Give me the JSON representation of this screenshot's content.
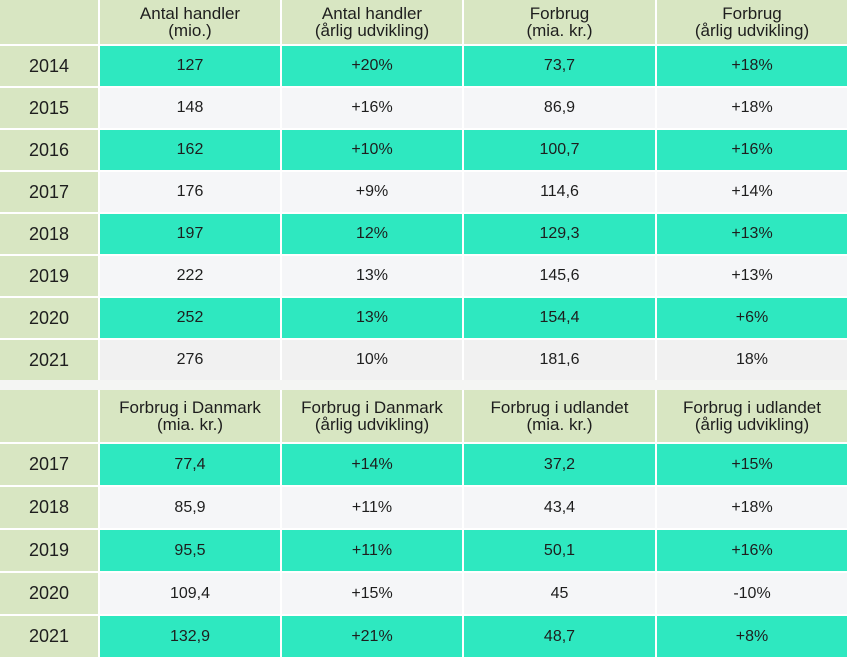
{
  "table1": {
    "headers": [
      [
        "",
        ""
      ],
      [
        "Antal handler",
        "(mio.)"
      ],
      [
        "Antal handler",
        "(årlig udvikling)"
      ],
      [
        "Forbrug",
        "(mia. kr.)"
      ],
      [
        "Forbrug",
        "(årlig udvikling)"
      ]
    ],
    "rows": [
      [
        "2014",
        "127",
        "+20%",
        "73,7",
        "+18%"
      ],
      [
        "2015",
        "148",
        "+16%",
        "86,9",
        "+18%"
      ],
      [
        "2016",
        "162",
        "+10%",
        "100,7",
        "+16%"
      ],
      [
        "2017",
        "176",
        "+9%",
        "114,6",
        "+14%"
      ],
      [
        "2018",
        "197",
        "12%",
        "129,3",
        "+13%"
      ],
      [
        "2019",
        "222",
        "13%",
        "145,6",
        "+13%"
      ],
      [
        "2020",
        "252",
        "13%",
        "154,4",
        "+6%"
      ],
      [
        "2021",
        "276",
        "10%",
        "181,6",
        "18%"
      ]
    ]
  },
  "table2": {
    "headers": [
      [
        "",
        ""
      ],
      [
        "Forbrug i Danmark",
        "(mia. kr.)"
      ],
      [
        "Forbrug i Danmark",
        "(årlig udvikling)"
      ],
      [
        "Forbrug i udlandet",
        "(mia. kr.)"
      ],
      [
        "Forbrug  i udlandet",
        "(årlig udvikling)"
      ]
    ],
    "rows": [
      [
        "2017",
        "77,4",
        "+14%",
        "37,2",
        "+15%"
      ],
      [
        "2018",
        "85,9",
        "+11%",
        "43,4",
        "+18%"
      ],
      [
        "2019",
        "95,5",
        "+11%",
        "50,1",
        "+16%"
      ],
      [
        "2020",
        "109,4",
        "+15%",
        "45",
        "-10%"
      ],
      [
        "2021",
        "132,9",
        "+21%",
        "48,7",
        "+8%"
      ]
    ]
  },
  "colors": {
    "header_bg": "#d8e6c2",
    "highlight": "#2ee8c0",
    "plain": "#f5f6f8"
  }
}
